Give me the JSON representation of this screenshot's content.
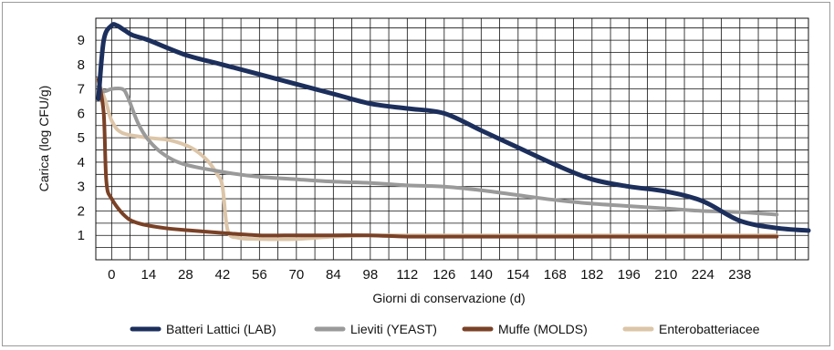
{
  "chart_data": {
    "type": "line",
    "title": "",
    "xlabel": "Giorni di conservazione (d)",
    "ylabel": "Carica (log CFU/g)",
    "x_ticks": [
      0,
      14,
      28,
      42,
      56,
      70,
      84,
      98,
      112,
      126,
      140,
      154,
      168,
      182,
      196,
      210,
      224,
      238
    ],
    "y_ticks": [
      1,
      2,
      3,
      4,
      5,
      6,
      7,
      8,
      9
    ],
    "xlim": [
      -6,
      264
    ],
    "ylim": [
      0,
      9.9
    ],
    "grid": true,
    "legend_position": "bottom",
    "series": [
      {
        "name": "Batteri Lattici (LAB)",
        "color": "#1c2f5c",
        "points": [
          [
            -5,
            6.6
          ],
          [
            -3,
            9.0
          ],
          [
            0,
            9.6
          ],
          [
            2,
            9.6
          ],
          [
            5,
            9.4
          ],
          [
            8,
            9.2
          ],
          [
            14,
            9.0
          ],
          [
            28,
            8.4
          ],
          [
            42,
            8.0
          ],
          [
            56,
            7.6
          ],
          [
            70,
            7.2
          ],
          [
            84,
            6.8
          ],
          [
            98,
            6.4
          ],
          [
            112,
            6.2
          ],
          [
            126,
            6.0
          ],
          [
            140,
            5.3
          ],
          [
            154,
            4.6
          ],
          [
            168,
            3.9
          ],
          [
            182,
            3.3
          ],
          [
            196,
            3.0
          ],
          [
            210,
            2.8
          ],
          [
            224,
            2.4
          ],
          [
            238,
            1.6
          ],
          [
            252,
            1.3
          ],
          [
            264,
            1.2
          ]
        ]
      },
      {
        "name": "Lieviti (YEAST)",
        "color": "#9a9a9a",
        "points": [
          [
            -5,
            7.1
          ],
          [
            -3,
            6.9
          ],
          [
            0,
            7.0
          ],
          [
            4,
            7.0
          ],
          [
            6,
            6.7
          ],
          [
            10,
            5.6
          ],
          [
            14,
            4.9
          ],
          [
            20,
            4.3
          ],
          [
            28,
            3.9
          ],
          [
            42,
            3.6
          ],
          [
            56,
            3.4
          ],
          [
            70,
            3.3
          ],
          [
            84,
            3.2
          ],
          [
            98,
            3.15
          ],
          [
            112,
            3.05
          ],
          [
            126,
            3.0
          ],
          [
            140,
            2.85
          ],
          [
            154,
            2.65
          ],
          [
            168,
            2.45
          ],
          [
            182,
            2.3
          ],
          [
            196,
            2.2
          ],
          [
            210,
            2.1
          ],
          [
            224,
            2.0
          ],
          [
            238,
            1.95
          ],
          [
            252,
            1.85
          ]
        ]
      },
      {
        "name": "Muffe (MOLDS)",
        "color": "#7a4126",
        "points": [
          [
            -5,
            7.4
          ],
          [
            -3,
            6.0
          ],
          [
            -2,
            3.2
          ],
          [
            0,
            2.5
          ],
          [
            5,
            1.8
          ],
          [
            10,
            1.5
          ],
          [
            20,
            1.3
          ],
          [
            30,
            1.2
          ],
          [
            42,
            1.1
          ],
          [
            56,
            1.0
          ],
          [
            70,
            1.0
          ],
          [
            84,
            1.0
          ],
          [
            98,
            1.0
          ],
          [
            112,
            0.95
          ],
          [
            126,
            0.95
          ],
          [
            140,
            0.95
          ],
          [
            154,
            0.95
          ],
          [
            168,
            0.95
          ],
          [
            182,
            0.95
          ],
          [
            196,
            0.95
          ],
          [
            210,
            0.95
          ],
          [
            224,
            0.95
          ],
          [
            238,
            0.95
          ],
          [
            252,
            0.95
          ]
        ]
      },
      {
        "name": "Enterobatteriacee",
        "color": "#dcc5a8",
        "points": [
          [
            -5,
            7.3
          ],
          [
            -2,
            6.4
          ],
          [
            0,
            5.7
          ],
          [
            4,
            5.2
          ],
          [
            14,
            5.0
          ],
          [
            22,
            4.9
          ],
          [
            30,
            4.6
          ],
          [
            36,
            4.1
          ],
          [
            40,
            3.5
          ],
          [
            42,
            3.0
          ],
          [
            44,
            1.2
          ],
          [
            48,
            0.9
          ],
          [
            56,
            0.85
          ],
          [
            70,
            0.85
          ],
          [
            84,
            0.95
          ],
          [
            98,
            1.0
          ],
          [
            112,
            1.0
          ],
          [
            126,
            1.0
          ],
          [
            140,
            1.0
          ],
          [
            154,
            1.0
          ],
          [
            168,
            1.0
          ],
          [
            182,
            1.0
          ],
          [
            196,
            1.0
          ],
          [
            210,
            1.0
          ],
          [
            224,
            1.0
          ],
          [
            238,
            1.0
          ],
          [
            252,
            1.0
          ]
        ]
      }
    ]
  }
}
